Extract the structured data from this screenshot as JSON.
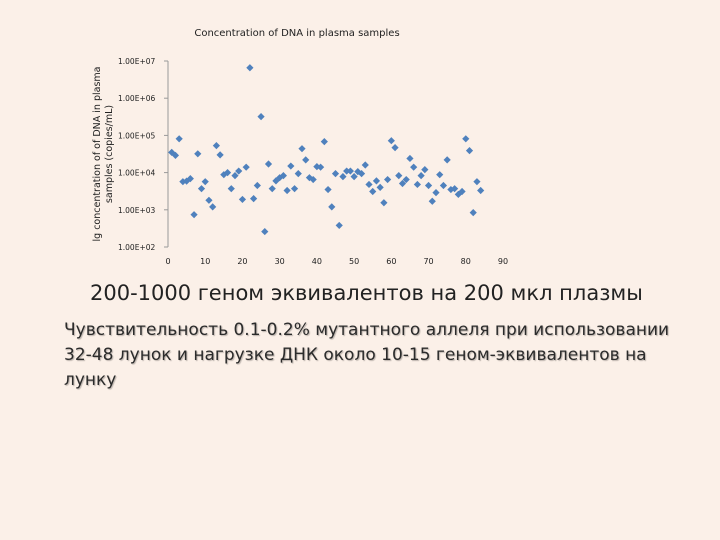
{
  "chart_data": {
    "type": "scatter",
    "title": "Concentration of DNA in plasma samples",
    "y_label": [
      "lg concentration of of DNA in plasma",
      "samples (copies/mL)"
    ],
    "x": [
      1,
      2,
      3,
      4,
      5,
      6,
      7,
      8,
      9,
      10,
      11,
      12,
      13,
      14,
      15,
      16,
      17,
      18,
      19,
      20,
      21,
      22,
      23,
      24,
      25,
      26,
      27,
      28,
      29,
      30,
      31,
      32,
      33,
      34,
      35,
      36,
      37,
      38,
      39,
      40,
      41,
      42,
      43,
      44,
      45,
      46,
      47,
      48,
      49,
      50,
      51,
      52,
      53,
      54,
      55,
      56,
      57,
      58,
      59,
      60,
      61,
      62,
      63,
      64,
      65,
      66,
      67,
      68,
      69,
      70,
      71,
      72,
      73,
      74,
      75,
      76,
      77,
      78,
      79,
      80,
      81,
      82,
      83,
      84
    ],
    "values": [
      35000,
      29000,
      81000,
      5700,
      5900,
      6900,
      740,
      32000,
      3700,
      5700,
      1800,
      1200,
      53000,
      30000,
      8800,
      10000,
      3700,
      8300,
      11000,
      1900,
      14000,
      6600000,
      2000,
      4500,
      320000,
      260,
      17000,
      3700,
      6000,
      7300,
      8300,
      3300,
      15000,
      3700,
      9400,
      44000,
      22000,
      7300,
      6500,
      14500,
      14000,
      68000,
      3500,
      1200,
      9400,
      380,
      7800,
      11000,
      11000,
      7800,
      10600,
      9400,
      16000,
      4800,
      3100,
      6000,
      4000,
      1550,
      6500,
      72000,
      47000,
      8300,
      5100,
      6500,
      24000,
      14000,
      4800,
      8300,
      12000,
      4500,
      1700,
      2900,
      8800,
      4500,
      22000,
      3500,
      3700,
      2600,
      3100,
      81000,
      39000,
      840,
      5700,
      3300
    ],
    "color": "#4f81bd",
    "marker": "diamond",
    "xlim": [
      0,
      90
    ],
    "xticks": [
      0,
      10,
      20,
      30,
      40,
      50,
      60,
      70,
      80,
      90
    ],
    "ylim": [
      100,
      10000000
    ],
    "log_y": true,
    "yticks": [
      {
        "value": 100,
        "label": "1.00E+02"
      },
      {
        "value": 1000,
        "label": "1.00E+03"
      },
      {
        "value": 10000,
        "label": "1.00E+04"
      },
      {
        "value": 100000,
        "label": "1.00E+05"
      },
      {
        "value": 1000000,
        "label": "1.00E+06"
      },
      {
        "value": 10000000,
        "label": "1.00E+07"
      }
    ],
    "grid": false
  },
  "texts": {
    "headline": "200-1000 геном эквивалентов на 200 мкл плазмы",
    "body": "Чувствительность 0.1-0.2% мутантного аллеля при использовании 32-48 лунок и нагрузке ДНК около 10-15 геном-эквивалентов на лунку"
  }
}
